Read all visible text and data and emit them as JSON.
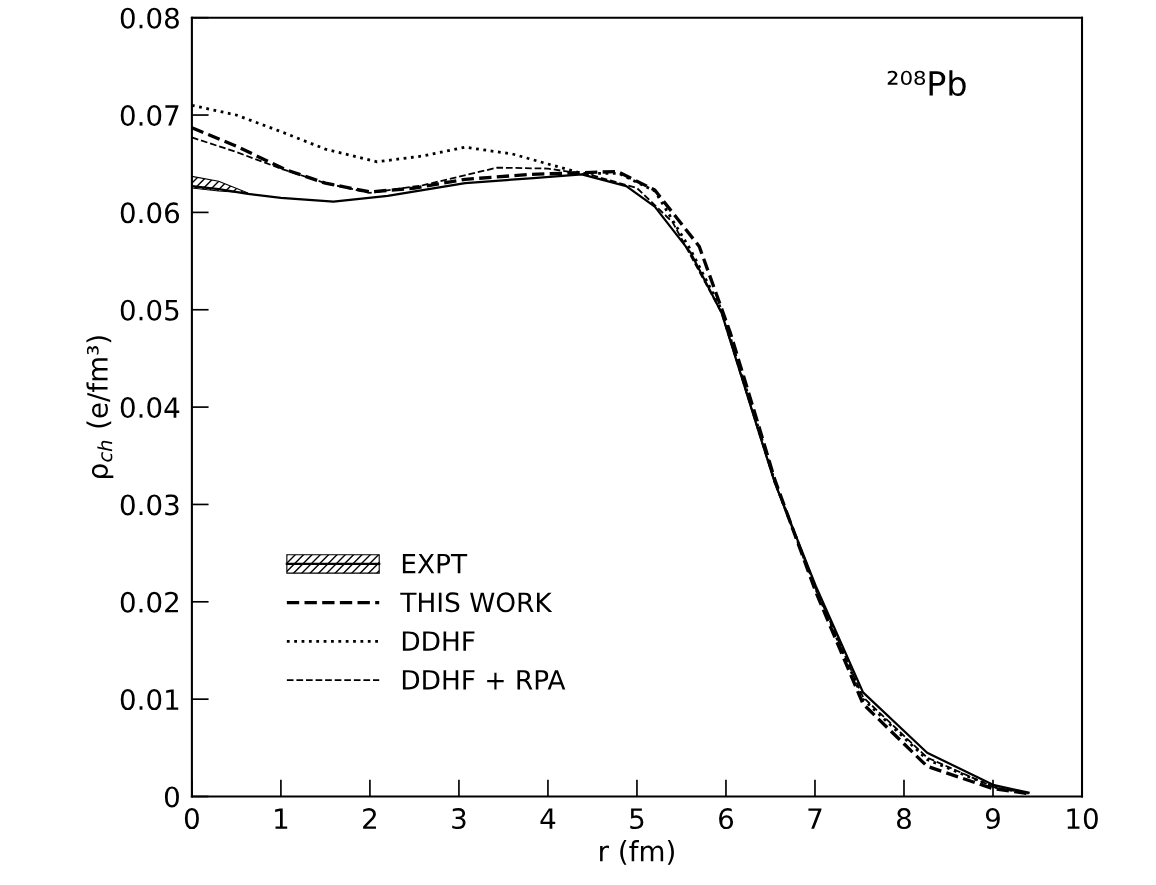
{
  "chart_data": {
    "type": "line",
    "xlabel": "r (fm)",
    "ylabel": "ρ$_{ch}$ (e/fm³)",
    "xlim": [
      0,
      10
    ],
    "ylim": [
      0,
      0.08
    ],
    "xticks": [
      0,
      1,
      2,
      3,
      4,
      5,
      6,
      7,
      8,
      9,
      10
    ],
    "yticks": [
      0,
      0.01,
      0.02,
      0.03,
      0.04,
      0.05,
      0.06,
      0.07,
      0.08
    ],
    "grid": false,
    "legend": "bottom left",
    "marker": "none",
    "annotations": [
      "²⁰⁸Pb"
    ],
    "series": [
      {
        "name": "EXPT",
        "color": "#000000",
        "line_style": "solid",
        "x": [
          0,
          0.3,
          0.63,
          1.0,
          1.59,
          2.2,
          3.07,
          3.8,
          4.38,
          4.88,
          5.2,
          5.6,
          5.95,
          6.37,
          6.55,
          7.01,
          7.54,
          8.26,
          9.0,
          9.4
        ],
        "values": [
          0.0627,
          0.0624,
          0.0619,
          0.0615,
          0.0611,
          0.0617,
          0.063,
          0.0635,
          0.0639,
          0.0627,
          0.0606,
          0.0559,
          0.0497,
          0.0374,
          0.0322,
          0.0216,
          0.0107,
          0.0045,
          0.0012,
          0.0004
        ],
        "lower": [
          0.0625,
          0.0622,
          0.062,
          null,
          null,
          null,
          null,
          null,
          null,
          null,
          null,
          null,
          null,
          null,
          null,
          null,
          null,
          null,
          null,
          null
        ],
        "upper": [
          0.0637,
          0.0632,
          0.062,
          null,
          null,
          null,
          null,
          null,
          null,
          null,
          null,
          null,
          null,
          null,
          null,
          null,
          null,
          null,
          null,
          null
        ]
      },
      {
        "name": "THIS WORK",
        "color": "#000000",
        "line_style": "dashed",
        "x": [
          0,
          0.5,
          1.05,
          1.5,
          2.0,
          2.5,
          3.07,
          3.8,
          4.78,
          5.2,
          5.7,
          6.05,
          6.37,
          6.55,
          7.01,
          7.54,
          8.26,
          9.0,
          9.4
        ],
        "values": [
          0.0687,
          0.0668,
          0.0644,
          0.063,
          0.0621,
          0.0625,
          0.0634,
          0.0639,
          0.0642,
          0.0623,
          0.0565,
          0.0476,
          0.038,
          0.0325,
          0.021,
          0.0095,
          0.0031,
          0.0008,
          0.0003
        ]
      },
      {
        "name": "DDHF",
        "color": "#000000",
        "line_style": "dotted",
        "x": [
          0,
          0.5,
          1.0,
          1.5,
          2.08,
          2.6,
          3.07,
          3.6,
          4.38,
          4.8,
          5.2,
          5.6,
          5.95,
          6.37,
          6.55,
          7.01,
          7.54,
          8.26,
          9.0,
          9.4
        ],
        "values": [
          0.071,
          0.07,
          0.0683,
          0.0665,
          0.0652,
          0.0658,
          0.0667,
          0.066,
          0.064,
          0.064,
          0.0622,
          0.0562,
          0.05,
          0.0377,
          0.0323,
          0.0213,
          0.01,
          0.0038,
          0.001,
          0.0003
        ]
      },
      {
        "name": "DDHF + RPA",
        "color": "#000000",
        "line_style": "dashed",
        "x": [
          0,
          0.5,
          1.0,
          1.5,
          2.0,
          2.6,
          3.43,
          4.0,
          4.5,
          5.0,
          5.4,
          5.95,
          6.37,
          6.55,
          7.01,
          7.54,
          8.26,
          9.0,
          9.4
        ],
        "values": [
          0.0677,
          0.0662,
          0.0645,
          0.063,
          0.062,
          0.0628,
          0.0646,
          0.0645,
          0.0638,
          0.0625,
          0.059,
          0.0497,
          0.0374,
          0.0322,
          0.0213,
          0.0102,
          0.004,
          0.001,
          0.0003
        ]
      }
    ]
  }
}
